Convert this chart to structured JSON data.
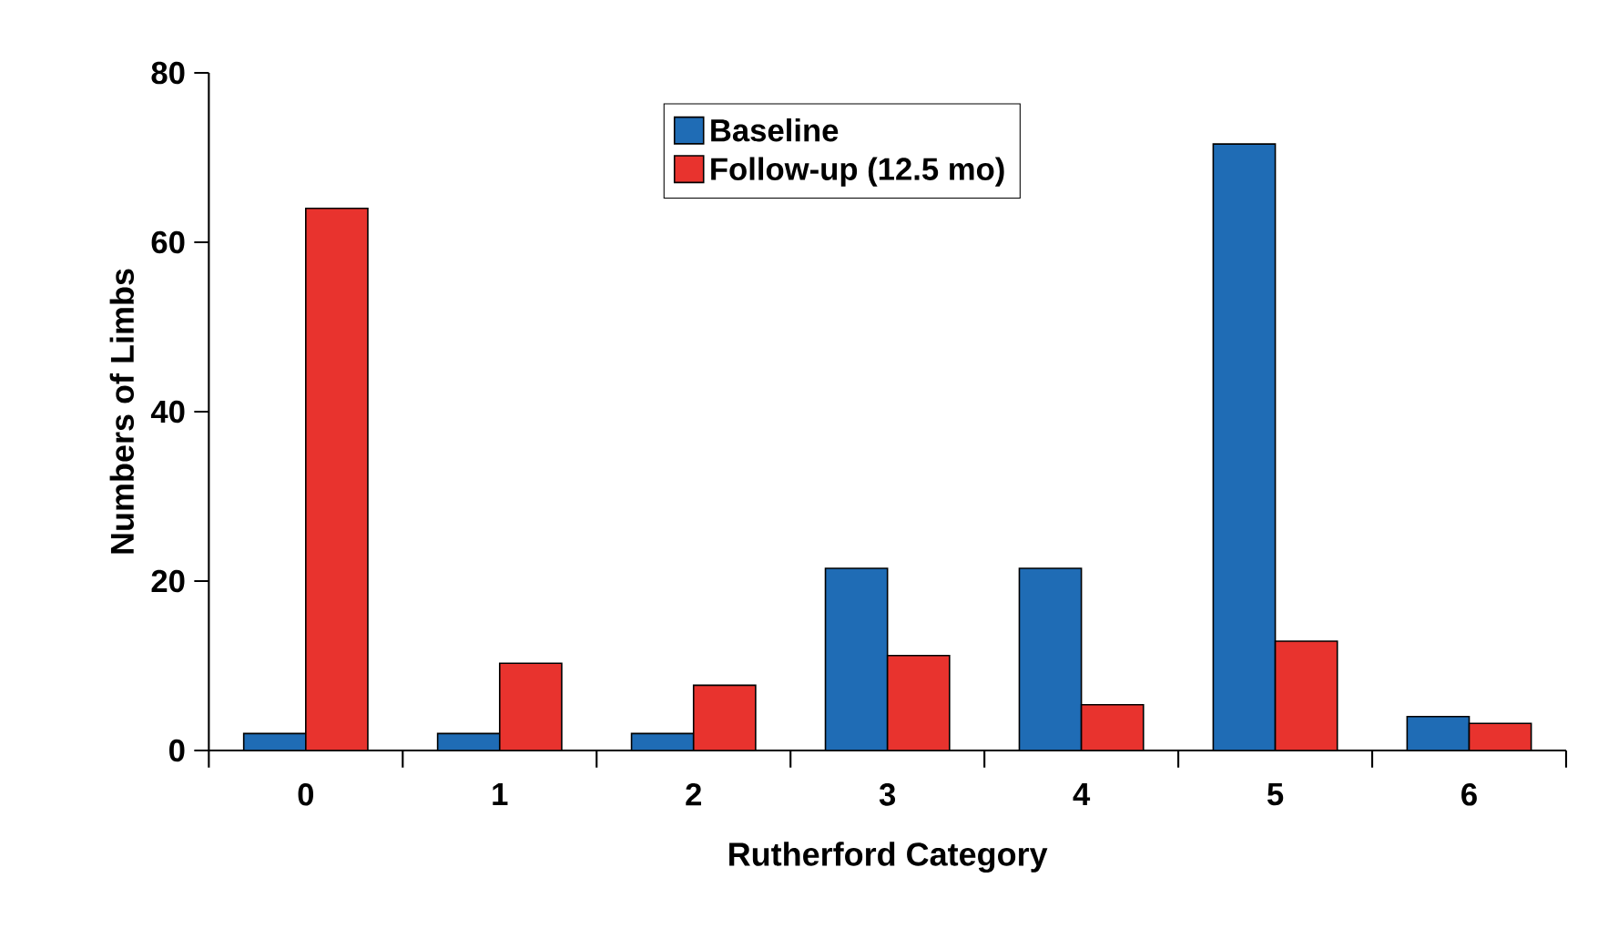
{
  "chart_data": {
    "type": "bar",
    "xlabel": "Rutherford Category",
    "ylabel": "Numbers of Limbs",
    "categories": [
      "0",
      "1",
      "2",
      "3",
      "4",
      "5",
      "6"
    ],
    "series": [
      {
        "name": "Baseline",
        "color": "#1f6cb5",
        "values": [
          2,
          2,
          2,
          21.5,
          21.5,
          71.6,
          4
        ]
      },
      {
        "name": "Follow-up (12.5 mo)",
        "color": "#e8332e",
        "values": [
          64,
          10.3,
          7.7,
          11.2,
          5.4,
          12.9,
          3.2
        ]
      }
    ],
    "ylim": [
      0,
      80
    ],
    "yticks": [
      0,
      20,
      40,
      60,
      80
    ],
    "legend": "top",
    "grid": false
  }
}
